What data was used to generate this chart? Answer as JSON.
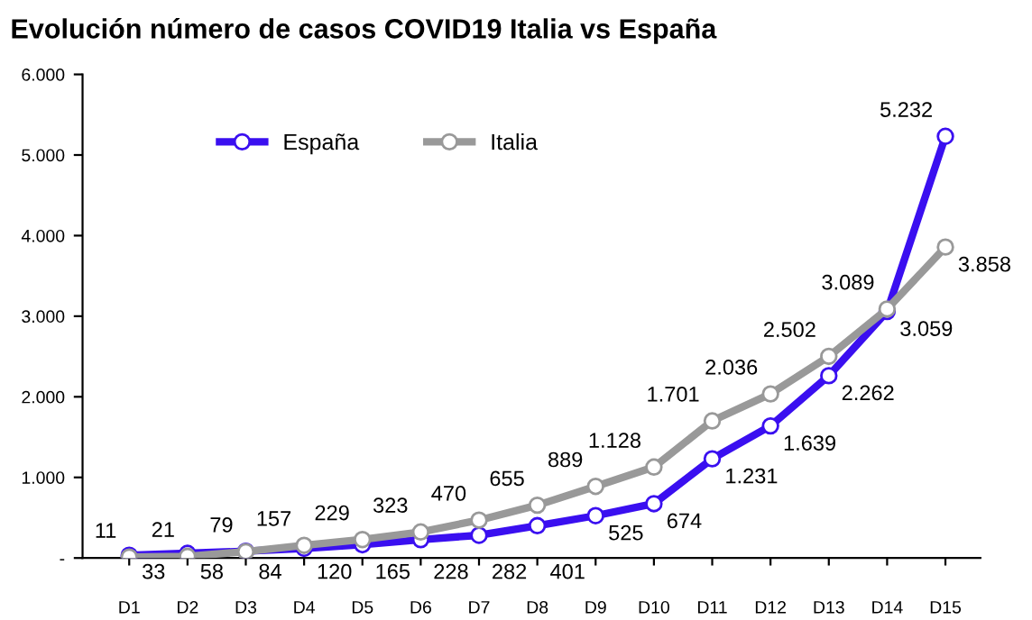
{
  "chart_data": {
    "type": "line",
    "title": "Evolución número de casos COVID19 Italia vs España",
    "categories": [
      "D1",
      "D2",
      "D3",
      "D4",
      "D5",
      "D6",
      "D7",
      "D8",
      "D9",
      "D10",
      "D11",
      "D12",
      "D13",
      "D14",
      "D15"
    ],
    "series": [
      {
        "name": "España",
        "color": "#3a0ff0",
        "values": [
          33,
          58,
          84,
          120,
          165,
          228,
          282,
          401,
          525,
          674,
          1231,
          1639,
          2262,
          3059,
          5232
        ],
        "value_labels": [
          "33",
          "58",
          "84",
          "120",
          "165",
          "228",
          "282",
          "401",
          "525",
          "674",
          "1.231",
          "1.639",
          "2.262",
          "3.059",
          "5.232"
        ]
      },
      {
        "name": "Italia",
        "color": "#999999",
        "values": [
          11,
          21,
          79,
          157,
          229,
          323,
          470,
          655,
          889,
          1128,
          1701,
          2036,
          2502,
          3089,
          3858
        ],
        "value_labels": [
          "11",
          "21",
          "79",
          "157",
          "229",
          "323",
          "470",
          "655",
          "889",
          "1.128",
          "1.701",
          "2.036",
          "2.502",
          "3.089",
          "3.858"
        ]
      }
    ],
    "ylim": [
      0,
      6000
    ],
    "yticks": [
      {
        "value": 0,
        "label": "-"
      },
      {
        "value": 1000,
        "label": "1.000"
      },
      {
        "value": 2000,
        "label": "2.000"
      },
      {
        "value": 3000,
        "label": "3.000"
      },
      {
        "value": 4000,
        "label": "4.000"
      },
      {
        "value": 5000,
        "label": "5.000"
      },
      {
        "value": 6000,
        "label": "6.000"
      }
    ],
    "grid": false,
    "legend": "top left",
    "marker": "circle",
    "line_style": "solid"
  }
}
